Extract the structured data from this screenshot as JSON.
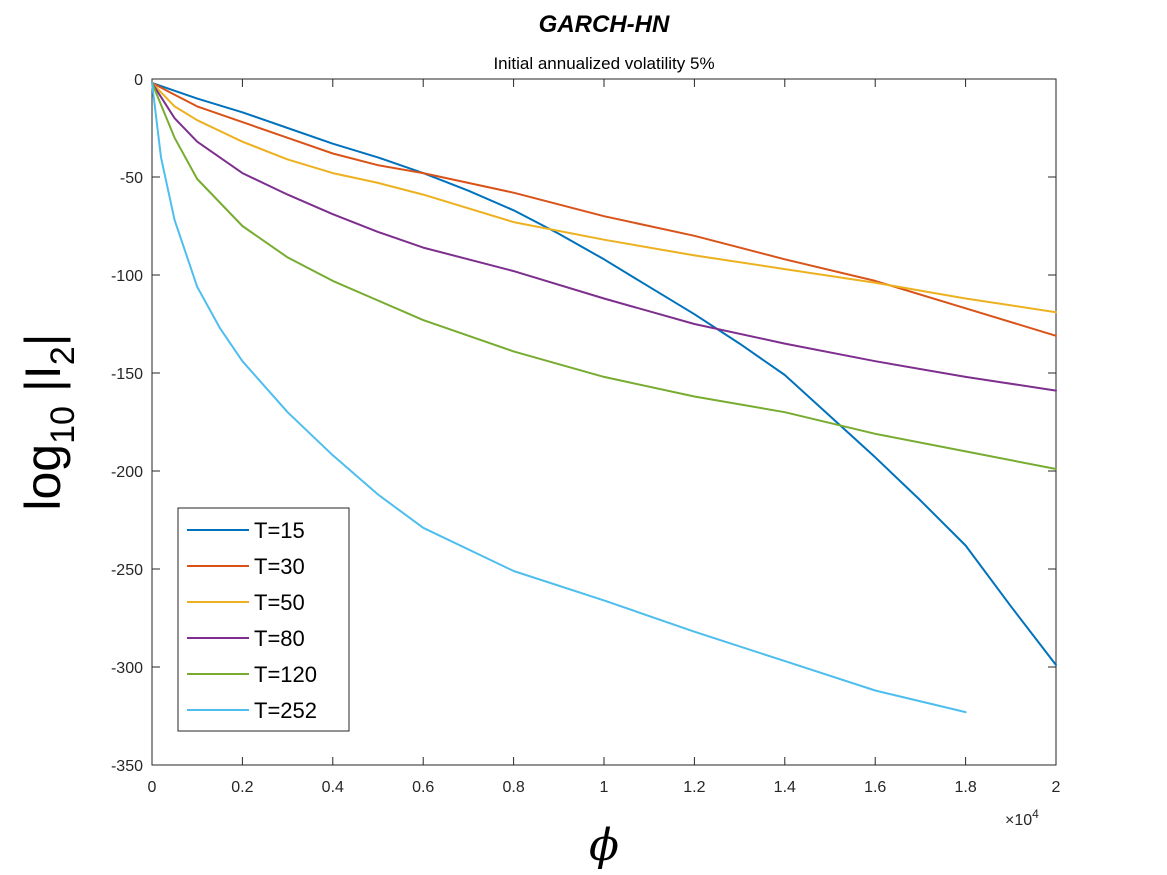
{
  "chart_data": {
    "type": "line",
    "title": "GARCH-HN",
    "subtitle": "Initial annualized volatility 5%",
    "xlabel": "ϕ",
    "ylabel_base": "log",
    "ylabel_sub": "10",
    "ylabel_tail": " |I",
    "ylabel_tail_sub": "2",
    "ylabel_end": "|",
    "x_exponent_base": "×10",
    "x_exponent_power": "4",
    "xlim": [
      0,
      2
    ],
    "ylim": [
      -350,
      0
    ],
    "xticks": [
      0,
      0.2,
      0.4,
      0.6,
      0.8,
      1,
      1.2,
      1.4,
      1.6,
      1.8,
      2
    ],
    "xtick_labels": [
      "0",
      "0.2",
      "0.4",
      "0.6",
      "0.8",
      "1",
      "1.2",
      "1.4",
      "1.6",
      "1.8",
      "2"
    ],
    "yticks": [
      0,
      -50,
      -100,
      -150,
      -200,
      -250,
      -300,
      -350
    ],
    "ytick_labels": [
      "0",
      "-50",
      "-100",
      "-150",
      "-200",
      "-250",
      "-300",
      "-350"
    ],
    "grid": false,
    "legend_position": "bottom-left",
    "series": [
      {
        "name": "T=15",
        "color": "#0072BD",
        "x": [
          0,
          0.1,
          0.2,
          0.3,
          0.4,
          0.5,
          0.6,
          0.7,
          0.8,
          0.9,
          1.0,
          1.1,
          1.2,
          1.3,
          1.4,
          1.5,
          1.6,
          1.7,
          1.8,
          1.9,
          2.0
        ],
        "y": [
          -2,
          -10,
          -17,
          -25,
          -33,
          -40,
          -48,
          -57,
          -67,
          -79,
          -92,
          -106,
          -120,
          -135,
          -151,
          -172,
          -193,
          -215,
          -238,
          -269,
          -299
        ]
      },
      {
        "name": "T=30",
        "color": "#D95319",
        "x": [
          0,
          0.05,
          0.1,
          0.2,
          0.3,
          0.4,
          0.5,
          0.6,
          0.8,
          1.0,
          1.2,
          1.4,
          1.6,
          1.8,
          2.0
        ],
        "y": [
          -2,
          -8,
          -14,
          -22,
          -30,
          -38,
          -44,
          -48,
          -58,
          -70,
          -80,
          -92,
          -103,
          -117,
          -131
        ]
      },
      {
        "name": "T=50",
        "color": "#EDB120",
        "x": [
          0,
          0.05,
          0.1,
          0.2,
          0.3,
          0.4,
          0.5,
          0.6,
          0.8,
          1.0,
          1.2,
          1.4,
          1.6,
          1.8,
          2.0
        ],
        "y": [
          -2,
          -14,
          -21,
          -32,
          -41,
          -48,
          -53,
          -59,
          -73,
          -82,
          -90,
          -97,
          -104,
          -112,
          -119
        ]
      },
      {
        "name": "T=80",
        "color": "#7E2F8E",
        "x": [
          0,
          0.05,
          0.1,
          0.2,
          0.3,
          0.4,
          0.5,
          0.6,
          0.8,
          1.0,
          1.2,
          1.4,
          1.6,
          1.8,
          2.0
        ],
        "y": [
          -2,
          -20,
          -32,
          -48,
          -59,
          -69,
          -78,
          -86,
          -98,
          -112,
          -125,
          -135,
          -144,
          -152,
          -159
        ]
      },
      {
        "name": "T=120",
        "color": "#77AC30",
        "x": [
          0,
          0.05,
          0.1,
          0.2,
          0.3,
          0.4,
          0.5,
          0.6,
          0.8,
          1.0,
          1.2,
          1.4,
          1.6,
          1.8,
          2.0
        ],
        "y": [
          -2,
          -30,
          -51,
          -75,
          -91,
          -103,
          -113,
          -123,
          -139,
          -152,
          -162,
          -170,
          -181,
          -190,
          -199
        ]
      },
      {
        "name": "T=252",
        "color": "#4DBEEE",
        "x": [
          0,
          0.02,
          0.05,
          0.1,
          0.15,
          0.2,
          0.3,
          0.4,
          0.5,
          0.6,
          0.8,
          1.0,
          1.2,
          1.4,
          1.6,
          1.8
        ],
        "y": [
          -2,
          -40,
          -72,
          -106,
          -127,
          -144,
          -170,
          -192,
          -212,
          -229,
          -251,
          -266,
          -282,
          -297,
          -312,
          -323
        ]
      }
    ]
  }
}
